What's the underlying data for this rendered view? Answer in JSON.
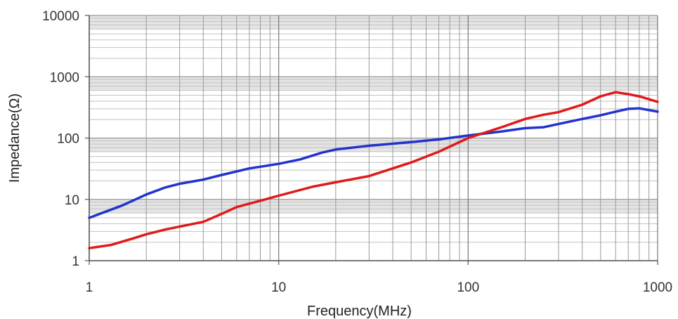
{
  "chart_data": {
    "type": "line",
    "title": "",
    "xlabel": "Frequency(MHz)",
    "ylabel": "Impedance(Ω)",
    "x_scale": "log",
    "y_scale": "log",
    "xlim": [
      1,
      1000
    ],
    "ylim": [
      1,
      10000
    ],
    "x_ticks": [
      1,
      10,
      100,
      1000
    ],
    "x_tick_labels": [
      "1",
      "10",
      "100",
      "1000"
    ],
    "y_ticks": [
      1,
      10,
      100,
      1000,
      10000
    ],
    "y_tick_labels": [
      "1",
      "10",
      "100",
      "1000",
      "10000"
    ],
    "grid": true,
    "legend": "none",
    "series": [
      {
        "color": "#2233cc",
        "points": [
          [
            1,
            5.0
          ],
          [
            1.5,
            8.0
          ],
          [
            2,
            12.0
          ],
          [
            2.5,
            15.5
          ],
          [
            3,
            18.0
          ],
          [
            4,
            21.0
          ],
          [
            5,
            25.0
          ],
          [
            7,
            32.0
          ],
          [
            10,
            38.0
          ],
          [
            13,
            45.0
          ],
          [
            17,
            58.0
          ],
          [
            20,
            65.0
          ],
          [
            30,
            75.0
          ],
          [
            50,
            86.0
          ],
          [
            70,
            95.0
          ],
          [
            100,
            110.0
          ],
          [
            150,
            128.0
          ],
          [
            200,
            145.0
          ],
          [
            250,
            150.0
          ],
          [
            300,
            170.0
          ],
          [
            400,
            205.0
          ],
          [
            500,
            235.0
          ],
          [
            600,
            270.0
          ],
          [
            700,
            300.0
          ],
          [
            800,
            305.0
          ],
          [
            1000,
            270.0
          ]
        ]
      },
      {
        "color": "#e01a1a",
        "points": [
          [
            1,
            1.6
          ],
          [
            1.3,
            1.8
          ],
          [
            1.7,
            2.3
          ],
          [
            2,
            2.7
          ],
          [
            2.5,
            3.2
          ],
          [
            3,
            3.6
          ],
          [
            4,
            4.3
          ],
          [
            5,
            5.8
          ],
          [
            6,
            7.5
          ],
          [
            8,
            9.5
          ],
          [
            10,
            11.5
          ],
          [
            15,
            16.0
          ],
          [
            20,
            19.0
          ],
          [
            30,
            24.0
          ],
          [
            40,
            32.0
          ],
          [
            50,
            40.0
          ],
          [
            70,
            60.0
          ],
          [
            100,
            100.0
          ],
          [
            150,
            150.0
          ],
          [
            200,
            205.0
          ],
          [
            250,
            240.0
          ],
          [
            300,
            265.0
          ],
          [
            400,
            350.0
          ],
          [
            500,
            480.0
          ],
          [
            600,
            560.0
          ],
          [
            700,
            520.0
          ],
          [
            800,
            480.0
          ],
          [
            1000,
            390.0
          ]
        ]
      }
    ]
  }
}
